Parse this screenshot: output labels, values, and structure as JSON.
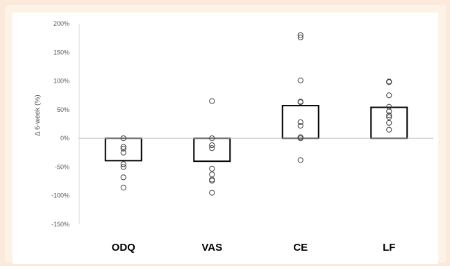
{
  "chart_data": {
    "type": "bar",
    "ylabel": "Δ 6-week (%)",
    "ylim": [
      -150,
      200
    ],
    "yticks": [
      200,
      150,
      100,
      50,
      0,
      -50,
      -100,
      -150
    ],
    "ytick_labels": [
      "200%",
      "150%",
      "100%",
      "50%",
      "0%",
      "-50%",
      "-100%",
      "-150%"
    ],
    "categories": [
      "ODQ",
      "VAS",
      "CE",
      "LF"
    ],
    "values": [
      -39,
      -40,
      57,
      54
    ],
    "points": [
      [
        0,
        -15,
        -18,
        -25,
        -45,
        -50,
        -68,
        -86
      ],
      [
        65,
        0,
        -12,
        -17,
        -53,
        -63,
        -72,
        -74,
        -95
      ],
      [
        180,
        176,
        101,
        64,
        63,
        28,
        22,
        2,
        0,
        -38
      ],
      [
        99,
        98,
        75,
        55,
        47,
        40,
        37,
        27,
        15
      ]
    ],
    "grid": false,
    "legend": "none",
    "colors": {
      "bar_fill": "#ffffff",
      "bar_stroke": "#000000",
      "marker_stroke": "#404040",
      "zero_line": "#bfbfbf"
    }
  }
}
